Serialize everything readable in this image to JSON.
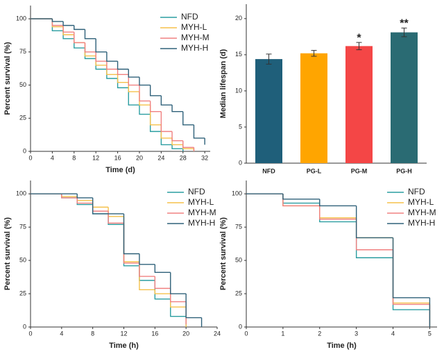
{
  "chart_data": [
    {
      "type": "step",
      "xlabel": "Time (d)",
      "ylabel": "Percent survival (%)",
      "xlim": [
        0,
        33
      ],
      "xticks": [
        0,
        4,
        8,
        12,
        16,
        20,
        24,
        28,
        32
      ],
      "ylim": [
        0,
        110
      ],
      "yticks": [
        0,
        25,
        50,
        75,
        100
      ],
      "legend": "upper right",
      "series": [
        {
          "name": "NFD",
          "color": "#2a9da0",
          "x": [
            0,
            4,
            6,
            8,
            10,
            12,
            14,
            16,
            18,
            20,
            22,
            24,
            26,
            28
          ],
          "values": [
            100,
            91,
            85,
            78,
            70,
            62,
            55,
            48,
            35,
            28,
            15,
            5,
            2,
            0
          ]
        },
        {
          "name": "MYH-L",
          "color": "#f5c04a",
          "x": [
            0,
            4,
            6,
            8,
            10,
            12,
            14,
            16,
            18,
            20,
            22,
            24,
            26,
            28,
            30
          ],
          "values": [
            100,
            94,
            88,
            82,
            72,
            65,
            58,
            52,
            45,
            35,
            20,
            10,
            5,
            2,
            0
          ]
        },
        {
          "name": "MYH-M",
          "color": "#f08080",
          "x": [
            0,
            4,
            6,
            8,
            10,
            12,
            14,
            16,
            18,
            20,
            22,
            24,
            26,
            28,
            30
          ],
          "values": [
            100,
            95,
            90,
            82,
            75,
            68,
            62,
            58,
            50,
            38,
            30,
            15,
            8,
            3,
            0
          ]
        },
        {
          "name": "MYH-H",
          "color": "#2e6079",
          "x": [
            0,
            4,
            6,
            8,
            10,
            12,
            14,
            16,
            18,
            20,
            22,
            24,
            26,
            28,
            30,
            32
          ],
          "values": [
            100,
            98,
            95,
            92,
            85,
            75,
            68,
            62,
            56,
            50,
            42,
            35,
            30,
            20,
            10,
            5
          ]
        }
      ]
    },
    {
      "type": "bar",
      "ylabel": "Median lifespan (d)",
      "categories": [
        "NFD",
        "PG-L",
        "PG-M",
        "PG-H"
      ],
      "values": [
        14.4,
        15.2,
        16.2,
        18.1
      ],
      "errors": [
        0.7,
        0.4,
        0.5,
        0.6
      ],
      "colors": [
        "#1f5f7a",
        "#ffa500",
        "#f44646",
        "#2a6b73"
      ],
      "annotations": [
        {
          "category": "PG-M",
          "text": "*"
        },
        {
          "category": "PG-H",
          "text": "**"
        }
      ],
      "ylim": [
        0,
        22
      ],
      "yticks": [
        0,
        5,
        10,
        15,
        20
      ]
    },
    {
      "type": "step",
      "xlabel": "Time (h)",
      "ylabel": "Percent survival (%)",
      "xlim": [
        0,
        24
      ],
      "xticks": [
        0,
        4,
        8,
        12,
        16,
        20,
        24
      ],
      "ylim": [
        0,
        110
      ],
      "yticks": [
        0,
        25,
        50,
        75,
        100
      ],
      "legend": "upper right",
      "series": [
        {
          "name": "NFD",
          "color": "#2a9da0",
          "x": [
            0,
            4,
            6,
            8,
            10,
            12,
            14,
            16,
            18,
            20
          ],
          "values": [
            100,
            97,
            92,
            85,
            77,
            46,
            35,
            21,
            8,
            0
          ]
        },
        {
          "name": "MYH-L",
          "color": "#f5c04a",
          "x": [
            0,
            4,
            6,
            8,
            10,
            12,
            14,
            16,
            18,
            20
          ],
          "values": [
            100,
            98,
            95,
            90,
            83,
            49,
            28,
            25,
            15,
            0
          ]
        },
        {
          "name": "MYH-M",
          "color": "#f08080",
          "x": [
            0,
            4,
            6,
            8,
            10,
            12,
            14,
            16,
            18,
            20
          ],
          "values": [
            100,
            97,
            93,
            87,
            78,
            48,
            38,
            29,
            19,
            2
          ]
        },
        {
          "name": "MYH-H",
          "color": "#2e6079",
          "x": [
            0,
            6,
            8,
            10,
            12,
            14,
            16,
            18,
            20,
            22
          ],
          "values": [
            100,
            97,
            85,
            85,
            55,
            47,
            41,
            25,
            7,
            0
          ]
        }
      ]
    },
    {
      "type": "step",
      "xlabel": "Time (h)",
      "ylabel": "Percent survival (%)",
      "xlim": [
        0,
        5.2
      ],
      "xticks": [
        0,
        1,
        2,
        3,
        4,
        5
      ],
      "ylim": [
        0,
        110
      ],
      "yticks": [
        0,
        25,
        50,
        75,
        100
      ],
      "legend": "upper right",
      "series": [
        {
          "name": "NFD",
          "color": "#2a9da0",
          "x": [
            0,
            1,
            2,
            3,
            4,
            5
          ],
          "values": [
            100,
            93,
            79,
            52,
            13,
            0
          ]
        },
        {
          "name": "MYH-L",
          "color": "#f5c04a",
          "x": [
            0,
            1,
            2,
            3,
            4,
            5
          ],
          "values": [
            100,
            91,
            82,
            67,
            18,
            0
          ]
        },
        {
          "name": "MYH-M",
          "color": "#f08080",
          "x": [
            0,
            1,
            2,
            3,
            4,
            5
          ],
          "values": [
            100,
            91,
            81,
            58,
            17,
            0
          ]
        },
        {
          "name": "MYH-H",
          "color": "#2e6079",
          "x": [
            0,
            1,
            2,
            3,
            4,
            5
          ],
          "values": [
            100,
            96,
            91,
            67,
            22,
            0
          ]
        }
      ]
    }
  ]
}
